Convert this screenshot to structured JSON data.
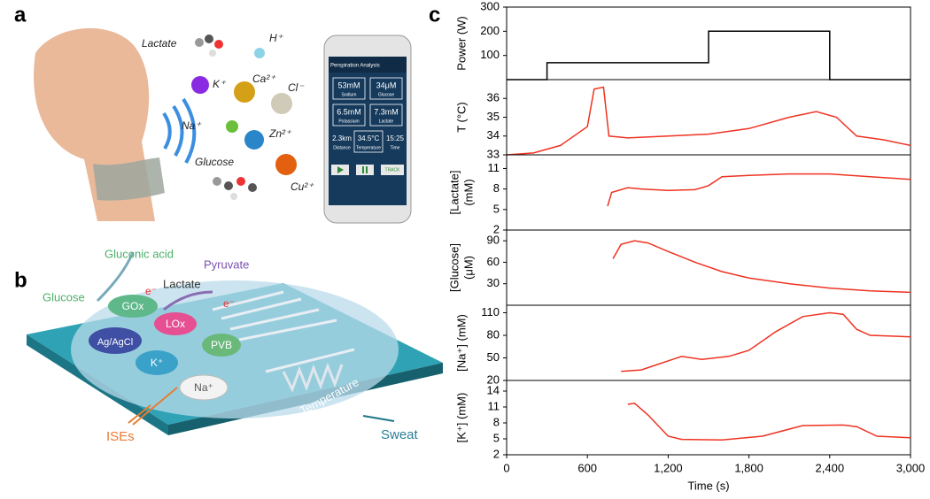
{
  "panel_labels": [
    "a",
    "b",
    "c"
  ],
  "panel_a": {
    "labels": [
      "Lactate",
      "H⁺",
      "K⁺",
      "Ca²⁺",
      "Cl⁻",
      "Na⁺",
      "Zn²⁺",
      "Glucose",
      "Cu²⁺"
    ],
    "phone": {
      "title": "Perspiration Analysis",
      "readings": [
        {
          "value": "53mM",
          "label": "Sodium"
        },
        {
          "value": "34μM",
          "label": "Glucose"
        },
        {
          "value": "6.5mM",
          "label": "Potassium"
        },
        {
          "value": "7.3mM",
          "label": "Lactate"
        },
        {
          "value": "2.3km",
          "label": "Distance"
        },
        {
          "value": "34.5°C",
          "label": "Temperature"
        },
        {
          "value": "15:25",
          "label": "Time"
        }
      ],
      "button": "TRACK"
    }
  },
  "panel_b": {
    "labels": [
      "Glucose",
      "Gluconic acid",
      "Lactate",
      "Pyruvate",
      "GOx",
      "LOx",
      "Ag/AgCl",
      "K⁺",
      "PVB",
      "Na⁺",
      "Temperature",
      "ISEs",
      "Sweat",
      "e⁻",
      "e⁻"
    ]
  },
  "chart_data": [
    {
      "type": "line",
      "ylabel": [
        "Power (W)"
      ],
      "color": "#000000",
      "x": [
        0,
        300,
        300,
        1500,
        1500,
        2400,
        2400,
        3000
      ],
      "values": [
        0,
        0,
        70,
        70,
        200,
        200,
        0,
        0
      ],
      "xlim": [
        0,
        3000
      ],
      "ylim": [
        0,
        300
      ],
      "yticks": [
        100,
        200,
        300
      ]
    },
    {
      "type": "line",
      "ylabel": [
        "T (°C)"
      ],
      "color": "#ee3322",
      "x": [
        0,
        200,
        400,
        600,
        650,
        720,
        760,
        900,
        1200,
        1500,
        1800,
        2100,
        2300,
        2450,
        2600,
        2800,
        3000
      ],
      "values": [
        33,
        33.1,
        33.5,
        34.5,
        36.5,
        36.6,
        34,
        33.9,
        34,
        34.1,
        34.4,
        35,
        35.3,
        35,
        34,
        33.8,
        33.5
      ],
      "xlim": [
        0,
        3000
      ],
      "ylim": [
        33,
        37
      ],
      "yticks": [
        33,
        34,
        35,
        36
      ]
    },
    {
      "type": "line",
      "ylabel": [
        "[Lactate]",
        "(mM)"
      ],
      "color": "#ee3322",
      "x": [
        750,
        780,
        900,
        1000,
        1200,
        1400,
        1500,
        1600,
        1800,
        2100,
        2400,
        2700,
        3000
      ],
      "values": [
        5.5,
        7.5,
        8.2,
        8,
        7.8,
        7.9,
        8.5,
        9.8,
        10,
        10.2,
        10.2,
        9.8,
        9.4
      ],
      "xlim": [
        0,
        3000
      ],
      "ylim": [
        2,
        13
      ],
      "yticks": [
        2,
        5,
        8,
        11
      ]
    },
    {
      "type": "line",
      "ylabel": [
        "[Glucose]",
        "(μM)"
      ],
      "color": "#ee3322",
      "x": [
        790,
        850,
        950,
        1050,
        1200,
        1400,
        1600,
        1800,
        2100,
        2400,
        2700,
        3000
      ],
      "values": [
        65,
        85,
        90,
        87,
        75,
        60,
        47,
        38,
        30,
        24,
        20,
        18
      ],
      "xlim": [
        0,
        3000
      ],
      "ylim": [
        0,
        105
      ],
      "yticks": [
        30,
        60,
        90
      ]
    },
    {
      "type": "line",
      "ylabel": [
        "[Na⁺] (mM)"
      ],
      "color": "#ee3322",
      "x": [
        850,
        1000,
        1100,
        1300,
        1450,
        1650,
        1800,
        2000,
        2200,
        2400,
        2500,
        2600,
        2700,
        3000
      ],
      "values": [
        32,
        34,
        40,
        52,
        48,
        52,
        60,
        85,
        105,
        110,
        108,
        88,
        80,
        78
      ],
      "xlim": [
        0,
        3000
      ],
      "ylim": [
        20,
        120
      ],
      "yticks": [
        20,
        50,
        80,
        110
      ]
    },
    {
      "type": "line",
      "ylabel": [
        "[K⁺] (mM)"
      ],
      "xlabel": "Time (s)",
      "color": "#ee3322",
      "x": [
        900,
        950,
        1050,
        1200,
        1300,
        1600,
        1900,
        2200,
        2500,
        2600,
        2750,
        3000
      ],
      "values": [
        11.5,
        11.7,
        9.5,
        5.5,
        4.9,
        4.8,
        5.5,
        7.5,
        7.6,
        7.3,
        5.5,
        5.2
      ],
      "xlim": [
        0,
        3000
      ],
      "ylim": [
        2,
        16
      ],
      "yticks": [
        2,
        5,
        8,
        11,
        14
      ],
      "xticks": [
        0,
        600,
        {
          "value": 1200,
          "label": "1,200"
        },
        {
          "value": 1800,
          "label": "1,800"
        },
        {
          "value": 2400,
          "label": "2,400"
        },
        {
          "value": 3000,
          "label": "3,000"
        }
      ]
    }
  ]
}
